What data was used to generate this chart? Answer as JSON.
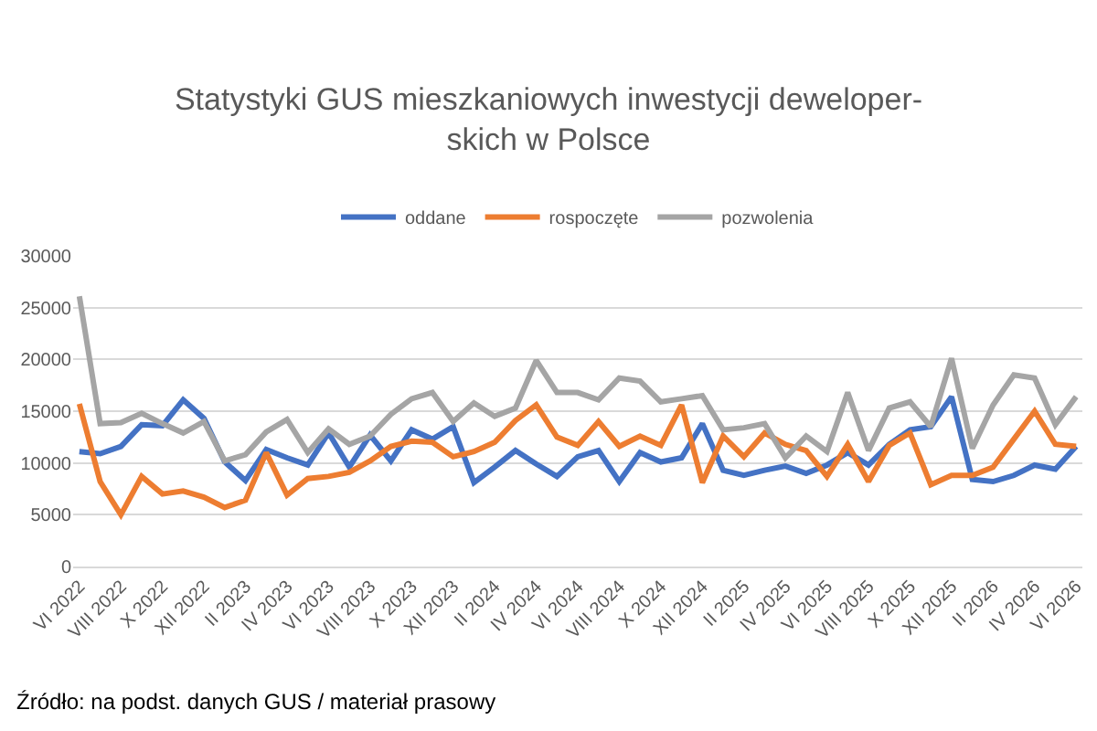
{
  "chart_data": {
    "type": "line",
    "title": "Statystyki GUS mieszkaniowych inwestycji deweloper-\nskich w Polsce",
    "categories": [
      "VI 2022",
      null,
      "VIII 2022",
      null,
      "X 2022",
      null,
      "XII 2022",
      null,
      "II 2023",
      null,
      "IV 2023",
      null,
      "VI 2023",
      null,
      "VIII 2023",
      null,
      "X 2023",
      null,
      "XII 2023",
      null,
      "II 2024",
      null,
      "IV 2024",
      null,
      "VI 2024",
      null,
      "VIII 2024",
      null,
      "X 2024",
      null,
      "XII 2024",
      null,
      "II 2025",
      null,
      "IV 2025",
      null,
      "VI 2025",
      null,
      "VIII 2025",
      null,
      "X 2025",
      null,
      "XII 2025",
      null,
      "II 2026",
      null,
      "IV 2026",
      null,
      "VI 2026"
    ],
    "series": [
      {
        "name": "oddane",
        "color": "#4472c4",
        "values": [
          11100,
          10900,
          11600,
          13700,
          13600,
          16100,
          14300,
          10100,
          8300,
          11300,
          10500,
          9800,
          12900,
          9600,
          12700,
          10200,
          13200,
          12300,
          13500,
          8100,
          9600,
          11200,
          9900,
          8700,
          10600,
          11200,
          8200,
          11000,
          10100,
          10500,
          13800,
          9300,
          8800,
          9300,
          9700,
          9000,
          9800,
          11000,
          9800,
          11800,
          13200,
          13500,
          16400,
          8400,
          8200,
          8800,
          9800,
          9400,
          11600
        ]
      },
      {
        "name": "rospoczęte",
        "color": "#ed7d31",
        "values": [
          15700,
          8200,
          5000,
          8700,
          7000,
          7300,
          6700,
          5700,
          6400,
          11000,
          6900,
          8500,
          8700,
          9100,
          10200,
          11600,
          12100,
          12000,
          10600,
          11100,
          12000,
          14100,
          15600,
          12500,
          11700,
          14000,
          11600,
          12600,
          11700,
          15600,
          8100,
          12600,
          10600,
          12900,
          11800,
          11200,
          8700,
          11800,
          8200,
          11700,
          12900,
          7900,
          8800,
          8800,
          9600,
          12300,
          15000,
          11800,
          11600
        ]
      },
      {
        "name": "pozwolenia",
        "color": "#a5a5a5",
        "values": [
          26100,
          13800,
          13900,
          14800,
          13800,
          12900,
          14000,
          10200,
          10800,
          13000,
          14200,
          11000,
          13300,
          11800,
          12600,
          14700,
          16200,
          16800,
          14000,
          15800,
          14500,
          15300,
          19900,
          16800,
          16800,
          16100,
          18200,
          17900,
          15900,
          16200,
          16500,
          13200,
          13400,
          13800,
          10500,
          12600,
          11100,
          16800,
          11200,
          15300,
          15900,
          13500,
          20100,
          11400,
          15600,
          18500,
          18200,
          13700,
          16400
        ]
      }
    ],
    "ylim": [
      0,
      30000
    ],
    "yticks": [
      0,
      5000,
      10000,
      15000,
      20000,
      25000,
      30000
    ],
    "grid": "y",
    "legend": "top",
    "line_style": "solid",
    "annotations": [
      "Źródło: na podst. danych GUS / materiał prasowy"
    ]
  }
}
